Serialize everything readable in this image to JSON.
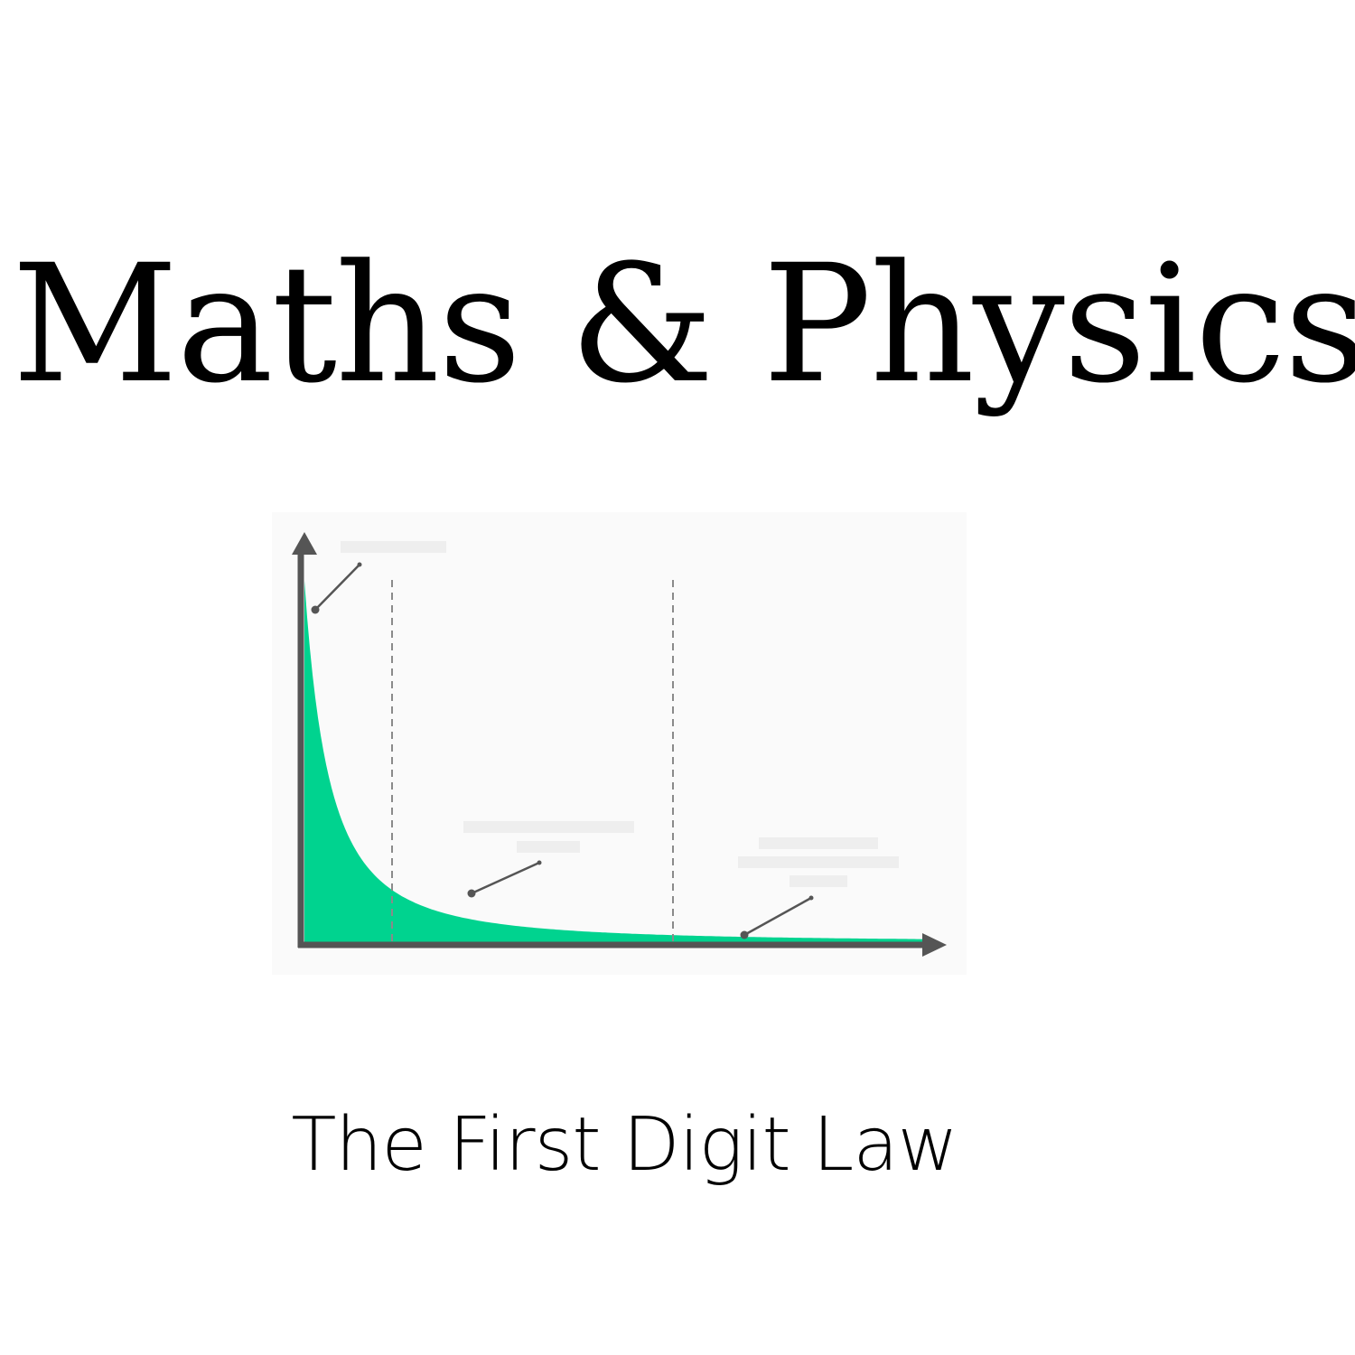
{
  "title": "Maths & Physics",
  "subtitle": "The First Digit Law",
  "illustration": {
    "fill_color": "#00d38f",
    "axis_color": "#555555",
    "panel_color": "#fafafa",
    "placeholder_color": "#eeeeee"
  }
}
